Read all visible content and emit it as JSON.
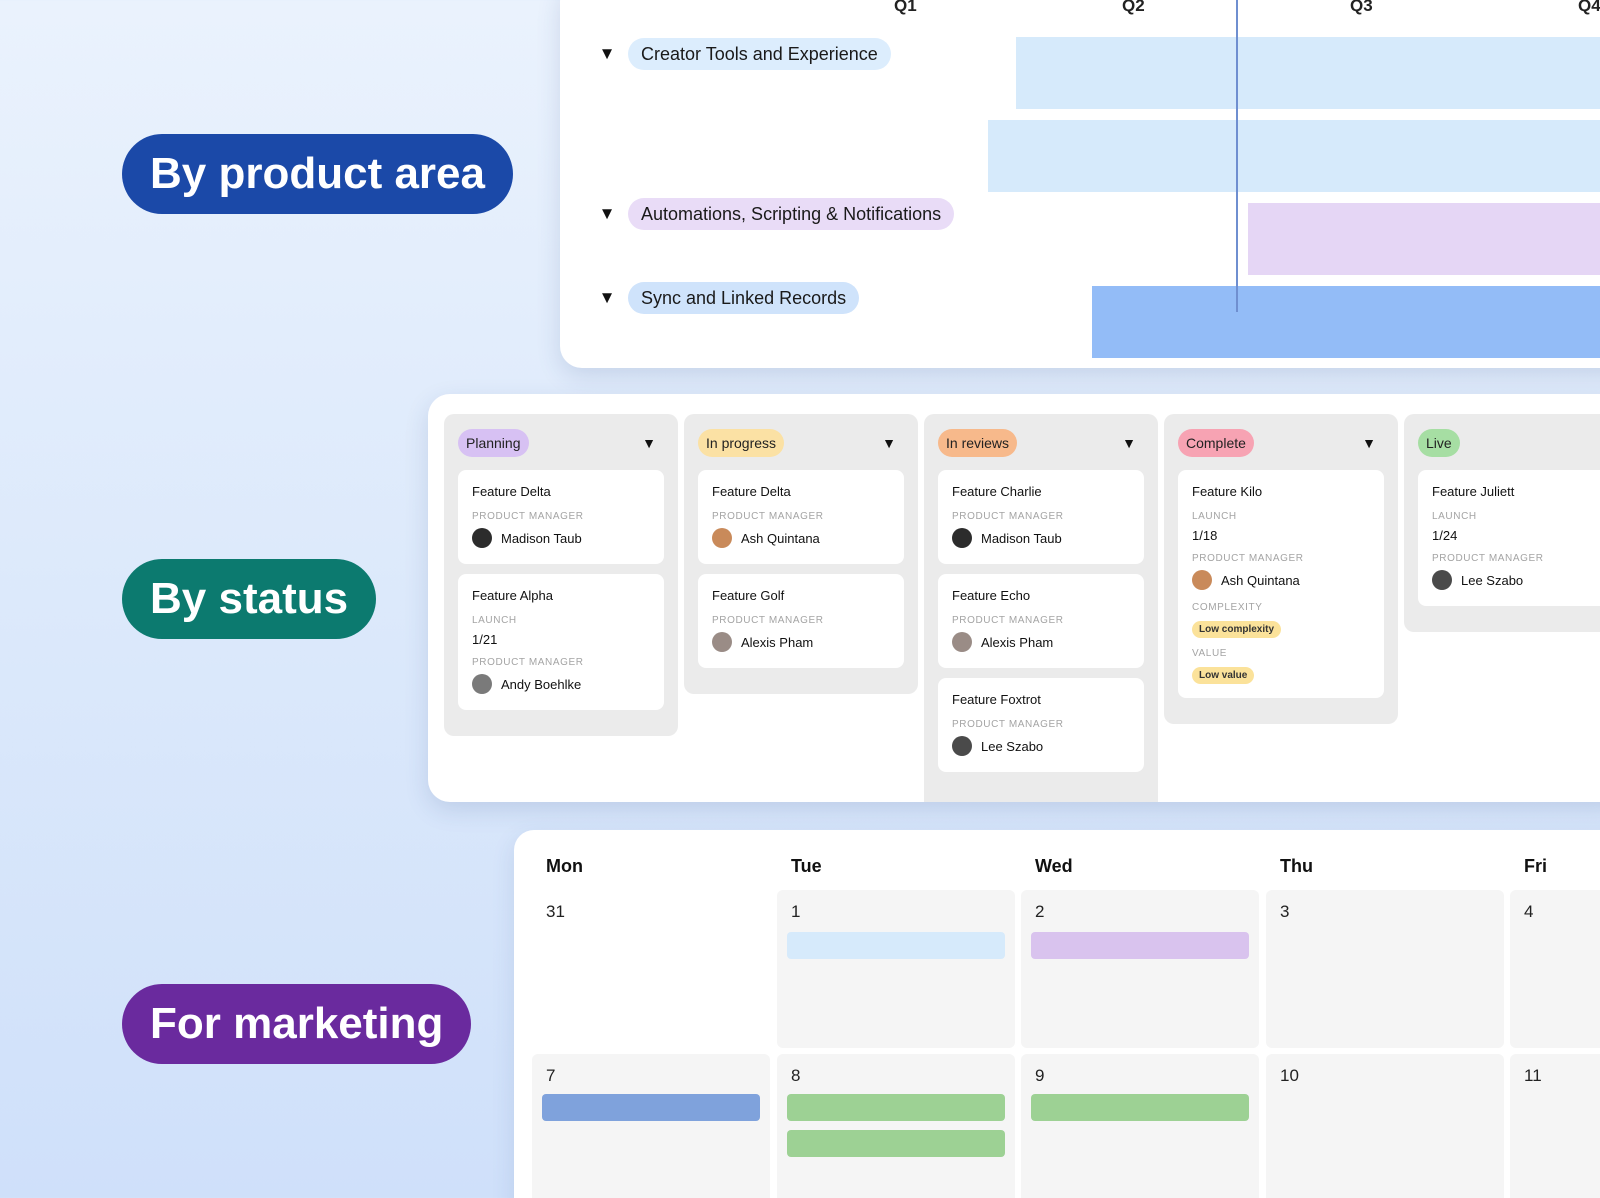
{
  "labels": {
    "product_area": "By product area",
    "status": "By status",
    "marketing": "For marketing"
  },
  "timeline": {
    "quarters": [
      "Q1",
      "Q2",
      "Q3",
      "Q4"
    ],
    "groups": [
      {
        "name": "Creator Tools and Experience",
        "color": "#dcedfd"
      },
      {
        "name": "Automations, Scripting & Notifications",
        "color": "#e9dcf7"
      },
      {
        "name": "Sync and Linked Records",
        "color": "#cfe3fb"
      }
    ],
    "bar_colors": {
      "light_blue": "#d6eafb",
      "lavender": "#e5d6f5",
      "blue": "#93bcf7"
    },
    "collapse_icon": "caret-down-icon"
  },
  "kanban": {
    "field_labels": {
      "pm": "PRODUCT MANAGER",
      "launch": "LAUNCH",
      "complexity": "COMPLEXITY",
      "value": "VALUE"
    },
    "columns": [
      {
        "status": "Planning",
        "color": "#d7c1f3",
        "cards": [
          {
            "title": "Feature Delta",
            "pm": "Madison Taub"
          },
          {
            "title": "Feature Alpha",
            "launch": "1/21",
            "pm": "Andy Boehlke"
          }
        ]
      },
      {
        "status": "In progress",
        "color": "#fbe1a4",
        "cards": [
          {
            "title": "Feature Delta",
            "pm": "Ash Quintana"
          },
          {
            "title": "Feature Golf",
            "pm": "Alexis Pham"
          }
        ]
      },
      {
        "status": "In reviews",
        "color": "#f7b98b",
        "cards": [
          {
            "title": "Feature Charlie",
            "pm": "Madison Taub"
          },
          {
            "title": "Feature Echo",
            "pm": "Alexis Pham"
          },
          {
            "title": "Feature Foxtrot",
            "pm": "Lee Szabo"
          }
        ]
      },
      {
        "status": "Complete",
        "color": "#f7a3b3",
        "cards": [
          {
            "title": "Feature Kilo",
            "launch": "1/18",
            "pm": "Ash Quintana",
            "complexity": "Low complexity",
            "value": "Low value"
          }
        ]
      },
      {
        "status": "Live",
        "color": "#a6dea3",
        "cards": [
          {
            "title": "Feature Juliett",
            "launch": "1/24",
            "pm": "Lee Szabo"
          }
        ]
      }
    ],
    "tag_color": "#fbe29a"
  },
  "calendar": {
    "days": [
      "Mon",
      "Tue",
      "Wed",
      "Thu",
      "Fri"
    ],
    "week1": [
      "31",
      "1",
      "2",
      "3",
      "4"
    ],
    "week2": [
      "7",
      "8",
      "9",
      "10",
      "11"
    ],
    "event_colors": {
      "light_blue": "#d6eafb",
      "lavender": "#d9c3ee",
      "blue": "#7fa2dc",
      "green": "#9dd194"
    }
  }
}
